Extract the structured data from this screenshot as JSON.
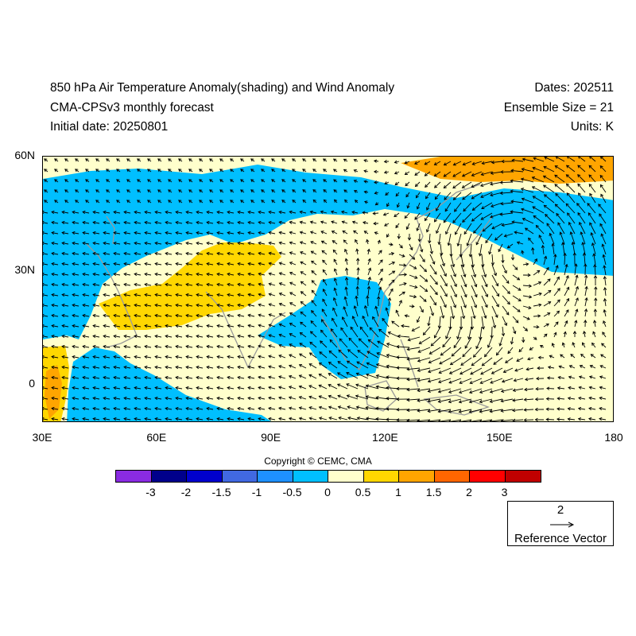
{
  "header": {
    "title_line1": "850 hPa Air Temperature Anomaly(shading) and Wind Anomaly",
    "title_line2": "CMA-CPSv3 monthly forecast",
    "title_line3": "Initial date: 20250801",
    "dates": "Dates: 202511",
    "ensemble": "Ensemble Size = 21",
    "units": "Units: K"
  },
  "axes": {
    "lat_labels": [
      "60N",
      "30N",
      "0"
    ],
    "lon_labels": [
      "30E",
      "60E",
      "90E",
      "120E",
      "150E",
      "180"
    ],
    "lat_range": [
      -10,
      60
    ],
    "lon_range": [
      30,
      180
    ]
  },
  "copyright": "Copyright © CEMC, CMA",
  "colorbar": {
    "labels": [
      "-3",
      "-2",
      "-1.5",
      "-1",
      "-0.5",
      "0",
      "0.5",
      "1",
      "1.5",
      "2",
      "3"
    ],
    "colors": [
      "#8a2be2",
      "#00008b",
      "#0000cd",
      "#4169e1",
      "#1e90ff",
      "#00bfff",
      "#ffffcc",
      "#ffd700",
      "#ffa500",
      "#ff6600",
      "#ff0000",
      "#c00000"
    ]
  },
  "reference_vector": {
    "magnitude": "2",
    "label": "Reference Vector"
  },
  "map": {
    "background_color": "#ffffcc",
    "coastline_color": "#999999",
    "vector_color": "#000000"
  }
}
